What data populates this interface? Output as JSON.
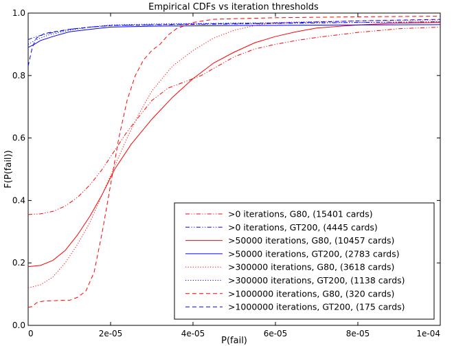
{
  "chart_data": {
    "type": "line",
    "title": "Empirical CDFs vs iteration thresholds",
    "xlabel": "P(fail)",
    "ylabel": "F(P(fail))",
    "xlim": [
      0,
      0.0001
    ],
    "ylim": [
      0,
      1.0
    ],
    "xticks": [
      0,
      2e-05,
      4e-05,
      6e-05,
      8e-05,
      0.0001
    ],
    "xtick_labels": [
      "0",
      "2e-05",
      "4e-05",
      "6e-05",
      "8e-05",
      "1e-04"
    ],
    "yticks": [
      0,
      0.2,
      0.4,
      0.6,
      0.8,
      1.0
    ],
    "ytick_labels": [
      "0.0",
      "0.2",
      "0.4",
      "0.6",
      "0.8",
      "1.0"
    ],
    "grid": false,
    "legend_position": "lower-right",
    "series": [
      {
        "name": ">0 iterations, G80, (15401 cards)",
        "color": "#ff0000",
        "dash": "dashdotdot",
        "points": [
          [
            0,
            0.355
          ],
          [
            3e-06,
            0.357
          ],
          [
            6e-06,
            0.365
          ],
          [
            9e-06,
            0.382
          ],
          [
            1.2e-05,
            0.41
          ],
          [
            1.5e-05,
            0.45
          ],
          [
            1.8e-05,
            0.5
          ],
          [
            2.1e-05,
            0.56
          ],
          [
            2.4e-05,
            0.62
          ],
          [
            2.7e-05,
            0.67
          ],
          [
            3e-05,
            0.72
          ],
          [
            3.4e-05,
            0.76
          ],
          [
            3.8e-05,
            0.78
          ],
          [
            4.2e-05,
            0.8
          ],
          [
            4.6e-05,
            0.83
          ],
          [
            5e-05,
            0.86
          ],
          [
            5.5e-05,
            0.885
          ],
          [
            6e-05,
            0.9
          ],
          [
            6.5e-05,
            0.912
          ],
          [
            7e-05,
            0.922
          ],
          [
            8e-05,
            0.938
          ],
          [
            9e-05,
            0.95
          ],
          [
            0.0001,
            0.955
          ]
        ]
      },
      {
        "name": ">0 iterations, GT200, (4445 cards)",
        "color": "#0000ff",
        "dash": "dashdotdot",
        "points": [
          [
            0,
            0.915
          ],
          [
            2e-06,
            0.925
          ],
          [
            5e-06,
            0.935
          ],
          [
            1e-05,
            0.948
          ],
          [
            1.5e-05,
            0.955
          ],
          [
            2e-05,
            0.96
          ],
          [
            3e-05,
            0.962
          ],
          [
            5e-05,
            0.965
          ],
          [
            8e-05,
            0.97
          ],
          [
            0.0001,
            0.972
          ]
        ]
      },
      {
        "name": ">50000 iterations, G80, (10457 cards)",
        "color": "#ff0000",
        "dash": "solid",
        "points": [
          [
            0,
            0.188
          ],
          [
            3e-06,
            0.192
          ],
          [
            6e-06,
            0.208
          ],
          [
            9e-06,
            0.24
          ],
          [
            1.2e-05,
            0.29
          ],
          [
            1.5e-05,
            0.35
          ],
          [
            1.8e-05,
            0.42
          ],
          [
            2.1e-05,
            0.5
          ],
          [
            2.5e-05,
            0.58
          ],
          [
            3e-05,
            0.66
          ],
          [
            3.5e-05,
            0.73
          ],
          [
            4e-05,
            0.79
          ],
          [
            4.5e-05,
            0.84
          ],
          [
            5e-05,
            0.875
          ],
          [
            5.5e-05,
            0.905
          ],
          [
            6e-05,
            0.925
          ],
          [
            6.5e-05,
            0.94
          ],
          [
            7e-05,
            0.952
          ],
          [
            8e-05,
            0.962
          ],
          [
            9e-05,
            0.968
          ],
          [
            0.0001,
            0.97
          ]
        ]
      },
      {
        "name": ">50000 iterations, GT200, (2783 cards)",
        "color": "#0000ff",
        "dash": "solid",
        "points": [
          [
            0,
            0.89
          ],
          [
            1.5e-06,
            0.9
          ],
          [
            3e-06,
            0.912
          ],
          [
            6e-06,
            0.925
          ],
          [
            1e-05,
            0.94
          ],
          [
            1.5e-05,
            0.948
          ],
          [
            2e-05,
            0.955
          ],
          [
            3e-05,
            0.958
          ],
          [
            5e-05,
            0.96
          ],
          [
            8e-05,
            0.962
          ],
          [
            0.0001,
            0.963
          ]
        ]
      },
      {
        "name": ">300000 iterations, G80, (3618 cards)",
        "color": "#ff0000",
        "dash": "dotted",
        "points": [
          [
            0,
            0.12
          ],
          [
            3e-06,
            0.13
          ],
          [
            6e-06,
            0.155
          ],
          [
            9e-06,
            0.2
          ],
          [
            1.2e-05,
            0.26
          ],
          [
            1.5e-05,
            0.33
          ],
          [
            1.8e-05,
            0.42
          ],
          [
            2.1e-05,
            0.51
          ],
          [
            2.4e-05,
            0.6
          ],
          [
            2.7e-05,
            0.68
          ],
          [
            3e-05,
            0.75
          ],
          [
            3.5e-05,
            0.83
          ],
          [
            4e-05,
            0.88
          ],
          [
            4.5e-05,
            0.92
          ],
          [
            5e-05,
            0.945
          ],
          [
            5.5e-05,
            0.96
          ],
          [
            6e-05,
            0.97
          ],
          [
            8e-05,
            0.975
          ],
          [
            0.0001,
            0.978
          ]
        ]
      },
      {
        "name": ">300000 iterations, GT200, (1138 cards)",
        "color": "#0000ff",
        "dash": "dotted",
        "points": [
          [
            0,
            0.9
          ],
          [
            2e-06,
            0.915
          ],
          [
            5e-06,
            0.93
          ],
          [
            1e-05,
            0.945
          ],
          [
            1.5e-05,
            0.955
          ],
          [
            2e-05,
            0.962
          ],
          [
            3e-05,
            0.965
          ],
          [
            5e-05,
            0.968
          ],
          [
            8e-05,
            0.97
          ],
          [
            0.0001,
            0.972
          ]
        ]
      },
      {
        "name": ">1000000 iterations, G80, (320 cards)",
        "color": "#ff0000",
        "dash": "dashed",
        "points": [
          [
            0,
            0.058
          ],
          [
            1e-06,
            0.06
          ],
          [
            2e-06,
            0.072
          ],
          [
            3e-06,
            0.076
          ],
          [
            4e-06,
            0.078
          ],
          [
            8e-06,
            0.08
          ],
          [
            1e-05,
            0.08
          ],
          [
            1.2e-05,
            0.09
          ],
          [
            1.4e-05,
            0.11
          ],
          [
            1.6e-05,
            0.17
          ],
          [
            1.8e-05,
            0.3
          ],
          [
            2e-05,
            0.45
          ],
          [
            2.2e-05,
            0.6
          ],
          [
            2.4e-05,
            0.72
          ],
          [
            2.6e-05,
            0.8
          ],
          [
            2.8e-05,
            0.85
          ],
          [
            3e-05,
            0.88
          ],
          [
            3.2e-05,
            0.9
          ],
          [
            3.4e-05,
            0.93
          ],
          [
            3.6e-05,
            0.95
          ],
          [
            4e-05,
            0.97
          ],
          [
            4.5e-05,
            0.98
          ],
          [
            5e-05,
            0.982
          ],
          [
            6e-05,
            0.985
          ],
          [
            8e-05,
            0.988
          ],
          [
            0.0001,
            0.99
          ]
        ]
      },
      {
        "name": ">1000000 iterations, GT200, (175 cards)",
        "color": "#0000ff",
        "dash": "dashed",
        "points": [
          [
            0,
            0.83
          ],
          [
            5e-07,
            0.86
          ],
          [
            1e-06,
            0.89
          ],
          [
            2e-06,
            0.92
          ],
          [
            4e-06,
            0.935
          ],
          [
            1e-05,
            0.948
          ],
          [
            1.5e-05,
            0.955
          ],
          [
            2e-05,
            0.96
          ],
          [
            4e-05,
            0.965
          ],
          [
            6e-05,
            0.968
          ],
          [
            8e-05,
            0.975
          ],
          [
            0.0001,
            0.98
          ]
        ]
      }
    ]
  }
}
